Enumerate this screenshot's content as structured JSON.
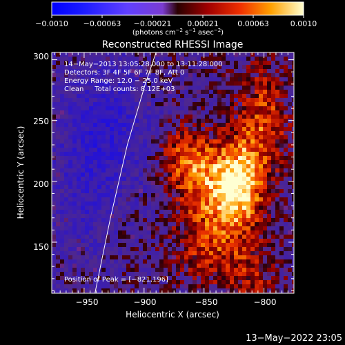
{
  "chart_data": {
    "type": "heatmap",
    "title": "Reconstructed RHESSI Image",
    "xlabel": "Heliocentric X (arcsec)",
    "ylabel": "Heliocentric Y (arcsec)",
    "xlim": [
      -977,
      -775
    ],
    "ylim": [
      108,
      306
    ],
    "xticks": [
      -950,
      -900,
      -850,
      -800
    ],
    "xtick_labels": [
      "−950",
      "−900",
      "−850",
      "−800"
    ],
    "yticks": [
      150,
      200,
      250,
      300
    ],
    "ytick_labels": [
      "150",
      "200",
      "250",
      "300"
    ],
    "colorbar": {
      "min": -0.001,
      "max": 0.001,
      "tick_labels": [
        "−0.0010",
        "−0.00063",
        "−0.00021",
        "0.00021",
        "0.00063",
        "0.0010"
      ],
      "label_prefix": "(photons cm",
      "label_exp1": "−2",
      "label_mid": " s",
      "label_exp2": "−1",
      "label_mid2": " asec",
      "label_exp3": "−2",
      "label_suffix": ")"
    },
    "info_lines": [
      "14−May−2013 13:05:28.000 to 13:11:28.000",
      "Detectors: 3F 4F 5F 6F 7F 8F, Att 0",
      "Energy Range: 12.0 − 25.0 keV",
      "Clean     Total counts: 8.12E+03"
    ],
    "peak_label": "Position of Peak = [−821,196]",
    "peak": [
      -821,
      196
    ],
    "limb_points": [
      [
        -941,
        108
      ],
      [
        -928,
        170
      ],
      [
        -914,
        230
      ],
      [
        -899,
        280
      ],
      [
        -890,
        306
      ]
    ],
    "emission_sources": [
      {
        "x": -821,
        "y": 196,
        "amp": 1.0,
        "sx": 14,
        "sy": 26
      },
      {
        "x": -848,
        "y": 200,
        "amp": 0.6,
        "sx": 18,
        "sy": 22
      },
      {
        "x": -800,
        "y": 250,
        "amp": 0.55,
        "sx": 14,
        "sy": 30
      },
      {
        "x": -868,
        "y": 222,
        "amp": 0.45,
        "sx": 14,
        "sy": 18
      },
      {
        "x": -847,
        "y": 148,
        "amp": 0.45,
        "sx": 20,
        "sy": 22
      },
      {
        "x": -810,
        "y": 125,
        "amp": 0.35,
        "sx": 16,
        "sy": 16
      },
      {
        "x": -925,
        "y": 245,
        "amp": -0.4,
        "sx": 25,
        "sy": 40
      },
      {
        "x": -950,
        "y": 200,
        "amp": -0.3,
        "sx": 20,
        "sy": 50
      }
    ]
  },
  "footer": {
    "timestamp": "13−May−2022 23:05"
  }
}
